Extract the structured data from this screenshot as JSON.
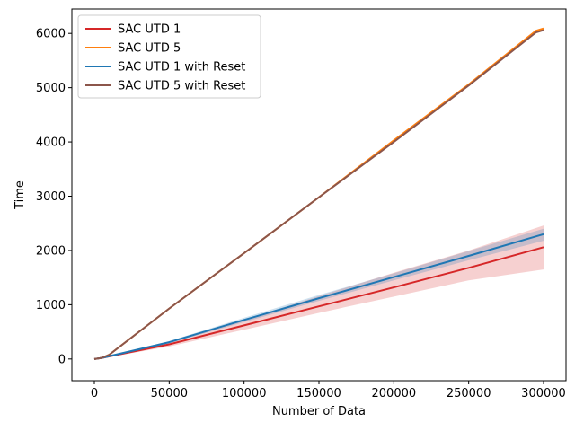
{
  "chart_data": {
    "type": "line",
    "title": "",
    "xlabel": "Number of Data",
    "ylabel": "Time",
    "xlim": [
      -15000,
      315000
    ],
    "ylim": [
      -400,
      6450
    ],
    "xticks": [
      0,
      50000,
      100000,
      150000,
      200000,
      250000,
      300000
    ],
    "yticks": [
      0,
      1000,
      2000,
      3000,
      4000,
      5000,
      6000
    ],
    "grid": false,
    "legend_position": "top-left",
    "series": [
      {
        "name": "SAC UTD 1",
        "color": "#d62728",
        "x": [
          0,
          5000,
          50000,
          100000,
          150000,
          200000,
          250000,
          300000
        ],
        "y": [
          0,
          20,
          270,
          620,
          970,
          1320,
          1680,
          2060
        ],
        "band": {
          "color": "#d62728",
          "lower": [
            0,
            10,
            230,
            540,
            850,
            1150,
            1450,
            1650
          ],
          "upper": [
            0,
            30,
            310,
            720,
            1160,
            1590,
            2000,
            2460
          ]
        }
      },
      {
        "name": "SAC UTD 5",
        "color": "#ff7f0e",
        "x": [
          0,
          5000,
          10000,
          50000,
          100000,
          150000,
          200000,
          250000,
          295000,
          300000
        ],
        "y": [
          0,
          20,
          80,
          930,
          1950,
          2980,
          4030,
          5060,
          6050,
          6090
        ]
      },
      {
        "name": "SAC UTD 1 with Reset",
        "color": "#1f77b4",
        "x": [
          0,
          5000,
          50000,
          100000,
          150000,
          200000,
          250000,
          300000
        ],
        "y": [
          0,
          20,
          310,
          720,
          1120,
          1510,
          1900,
          2300
        ],
        "band": {
          "color": "#1f77b4",
          "lower": [
            0,
            15,
            290,
            680,
            1070,
            1450,
            1820,
            2180
          ],
          "upper": [
            0,
            25,
            330,
            760,
            1180,
            1580,
            1990,
            2400
          ]
        }
      },
      {
        "name": "SAC UTD 5 with Reset",
        "color": "#8c564b",
        "x": [
          0,
          5000,
          10000,
          50000,
          100000,
          150000,
          200000,
          250000,
          295000,
          300000
        ],
        "y": [
          0,
          20,
          80,
          930,
          1950,
          2980,
          4000,
          5040,
          6020,
          6060
        ]
      }
    ]
  }
}
